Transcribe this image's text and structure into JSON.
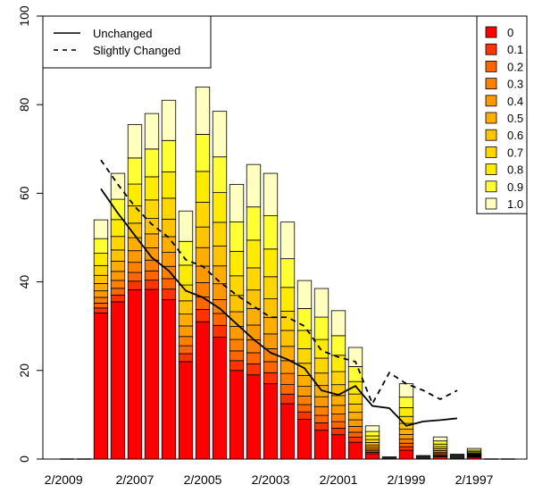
{
  "chart_data": {
    "type": "bar",
    "stacked": true,
    "x_tick_labels": [
      "2/2009",
      "2/2007",
      "2/2005",
      "2/2003",
      "2/2001",
      "2/1999",
      "2/1997"
    ],
    "y_ticks": [
      "0",
      "20",
      "40",
      "60",
      "80",
      "100"
    ],
    "ylim": [
      0,
      100
    ],
    "grid": false,
    "line_legend": {
      "placement": "top-left",
      "entries": [
        {
          "label": "Unchanged",
          "style": "solid"
        },
        {
          "label": "Slightly Changed",
          "style": "dashed"
        }
      ]
    },
    "fill_legend": {
      "placement": "top-right",
      "levels": [
        "0",
        "0.1",
        "0.2",
        "0.3",
        "0.4",
        "0.5",
        "0.6",
        "0.7",
        "0.8",
        "0.9",
        "1.0"
      ],
      "colors": [
        "#ff0000",
        "#ff3300",
        "#ff6600",
        "#ff8000",
        "#ff9900",
        "#ffad00",
        "#ffc400",
        "#ffd600",
        "#ffeb00",
        "#ffff33",
        "#ffffbf"
      ]
    },
    "bar_tops": [
      0,
      0,
      54,
      64.5,
      75.5,
      78,
      81,
      56,
      84,
      78.5,
      62,
      66.5,
      64.5,
      53.5,
      40.3,
      38.5,
      33.5,
      25.2,
      7.5,
      0.5,
      17,
      0.8,
      5,
      1.1,
      2.4,
      0,
      0
    ],
    "bar_red_bottoms": [
      0,
      0,
      33,
      35.5,
      38.2,
      38.3,
      36,
      22,
      31,
      27.5,
      20,
      19,
      17,
      12.5,
      9,
      6.5,
      5.5,
      3.8,
      1.2,
      0.5,
      2,
      0.8,
      0.5,
      1.1,
      0.4,
      0,
      0
    ],
    "unchanged_line": {
      "start_index": 2,
      "values": [
        61,
        55.5,
        50.5,
        45.5,
        42.5,
        38,
        36.5,
        34,
        30.5,
        27,
        24,
        22.5,
        20.5,
        15.5,
        14.5,
        16.5,
        12,
        11.5,
        7.5,
        8.5,
        8.8,
        9.2
      ]
    },
    "slightly_changed_line": {
      "start_index": 2,
      "values": [
        67.5,
        62,
        57,
        53,
        50,
        45,
        43.5,
        40,
        37,
        34.5,
        32,
        32,
        30,
        24.5,
        23,
        22,
        12.5,
        19.5,
        17,
        15.5,
        13.5,
        15.5
      ]
    }
  }
}
